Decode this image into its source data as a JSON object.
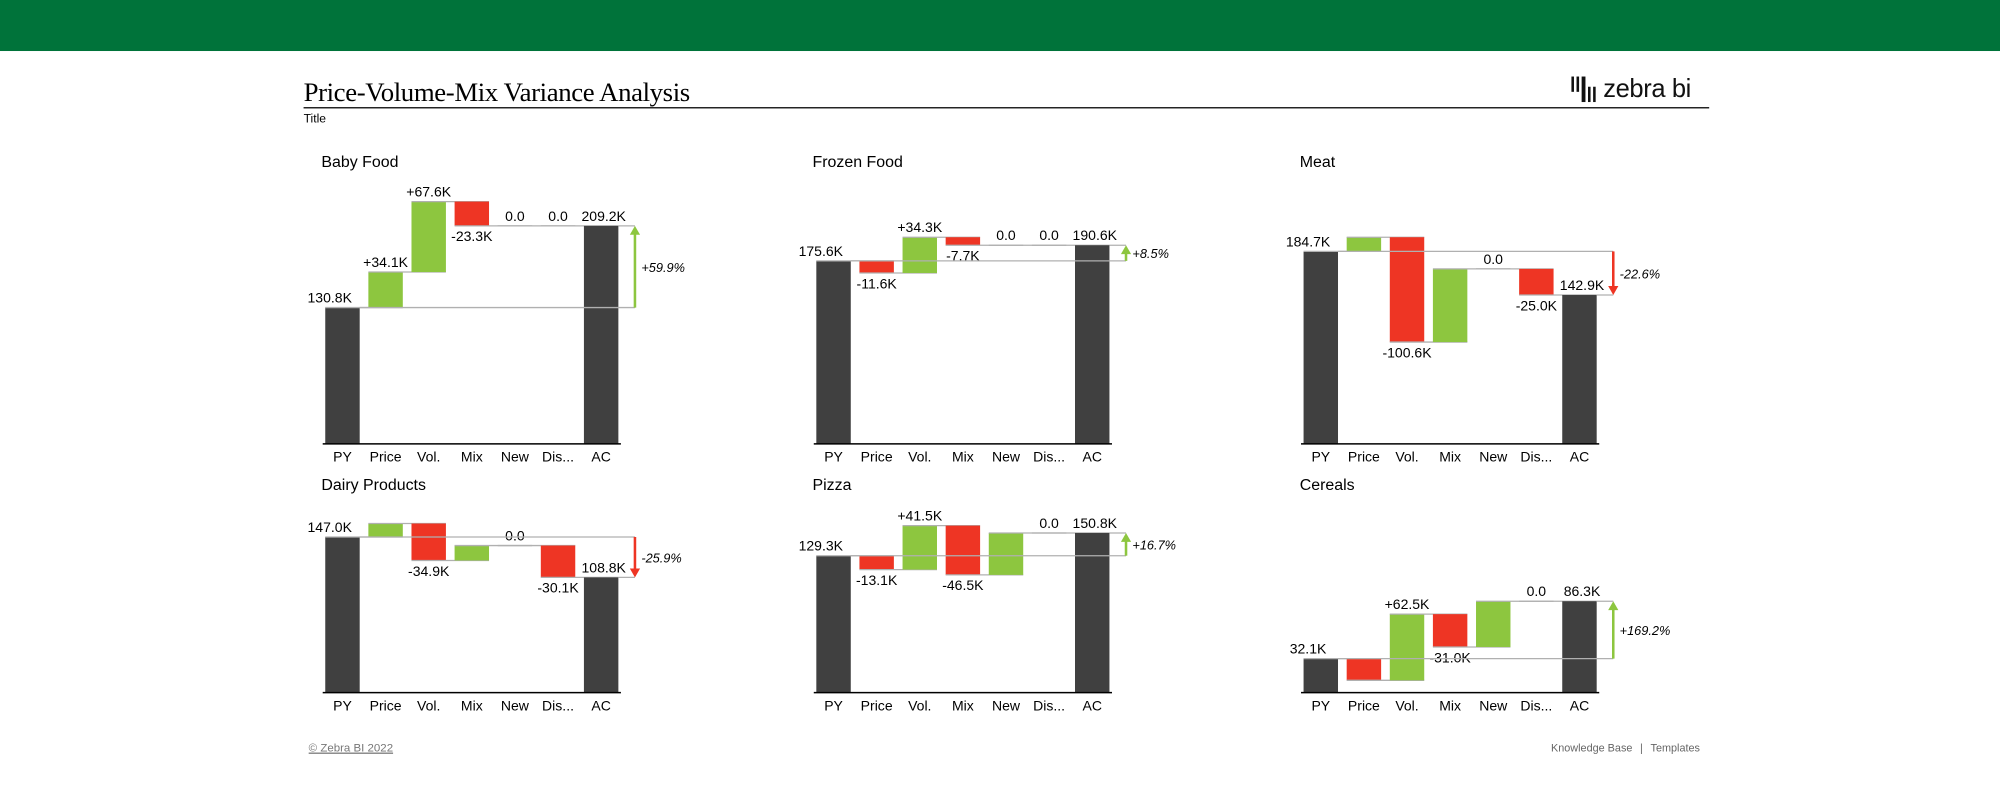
{
  "header": {
    "title": "Price-Volume-Mix Variance Analysis",
    "subtitle": "Title",
    "brand_color": "#00733A",
    "logo_text": "zebra bi"
  },
  "footer": {
    "copyright": "© Zebra BI 2022",
    "links": [
      "Knowledge Base",
      "Templates"
    ],
    "separator": "|"
  },
  "colors": {
    "total": "#404040",
    "positive": "#8DC63F",
    "negative": "#EE3524",
    "connector": "#B0B0B0"
  },
  "chart_data": [
    {
      "type": "waterfall",
      "title": "Baby Food",
      "categories": [
        "PY",
        "Price",
        "Vol.",
        "Mix",
        "New",
        "Dis...",
        "AC"
      ],
      "values": [
        130.8,
        34.1,
        67.6,
        -23.3,
        0.0,
        0.0,
        209.2
      ],
      "labels": [
        "130.8K",
        "+34.1K",
        "+67.6K",
        "-23.3K",
        "0.0",
        "0.0",
        "209.2K"
      ],
      "variance_pct": "+59.9%",
      "unit": "K"
    },
    {
      "type": "waterfall",
      "title": "Frozen Food",
      "categories": [
        "PY",
        "Price",
        "Vol.",
        "Mix",
        "New",
        "Dis...",
        "AC"
      ],
      "values": [
        175.6,
        -11.6,
        34.3,
        -7.7,
        0.0,
        0.0,
        190.6
      ],
      "labels": [
        "175.6K",
        "-11.6K",
        "+34.3K",
        "-7.7K",
        "0.0",
        "0.0",
        "190.6K"
      ],
      "variance_pct": "+8.5%",
      "unit": "K"
    },
    {
      "type": "waterfall",
      "title": "Meat",
      "categories": [
        "PY",
        "Price",
        "Vol.",
        "Mix",
        "New",
        "Dis...",
        "AC"
      ],
      "values": [
        184.7,
        13.6,
        -100.6,
        70.2,
        0.0,
        -25.0,
        142.9
      ],
      "labels": [
        "184.7K",
        "",
        "-100.6K",
        "",
        "0.0",
        "-25.0K",
        "142.9K"
      ],
      "variance_pct": "-22.6%",
      "unit": "K"
    },
    {
      "type": "waterfall",
      "title": "Dairy Products",
      "categories": [
        "PY",
        "Price",
        "Vol.",
        "Mix",
        "New",
        "Dis...",
        "AC"
      ],
      "values": [
        147.0,
        12.7,
        -34.9,
        14.1,
        0.0,
        -30.1,
        108.8
      ],
      "labels": [
        "147.0K",
        "",
        "-34.9K",
        "",
        "0.0",
        "-30.1K",
        "108.8K"
      ],
      "variance_pct": "-25.9%",
      "unit": "K"
    },
    {
      "type": "waterfall",
      "title": "Pizza",
      "categories": [
        "PY",
        "Price",
        "Vol.",
        "Mix",
        "New",
        "Dis...",
        "AC"
      ],
      "values": [
        129.3,
        -13.1,
        41.5,
        -46.5,
        39.6,
        0.0,
        150.8
      ],
      "labels": [
        "129.3K",
        "-13.1K",
        "+41.5K",
        "-46.5K",
        "",
        "0.0",
        "150.8K"
      ],
      "variance_pct": "+16.7%",
      "unit": "K"
    },
    {
      "type": "waterfall",
      "title": "Cereals",
      "categories": [
        "PY",
        "Price",
        "Vol.",
        "Mix",
        "New",
        "Dis...",
        "AC"
      ],
      "values": [
        32.1,
        -20.5,
        62.5,
        -31.0,
        43.2,
        0.0,
        86.3
      ],
      "labels": [
        "32.1K",
        "",
        "+62.5K",
        "-31.0K",
        "",
        "0.0",
        "86.3K"
      ],
      "variance_pct": "+169.2%",
      "unit": "K"
    }
  ]
}
